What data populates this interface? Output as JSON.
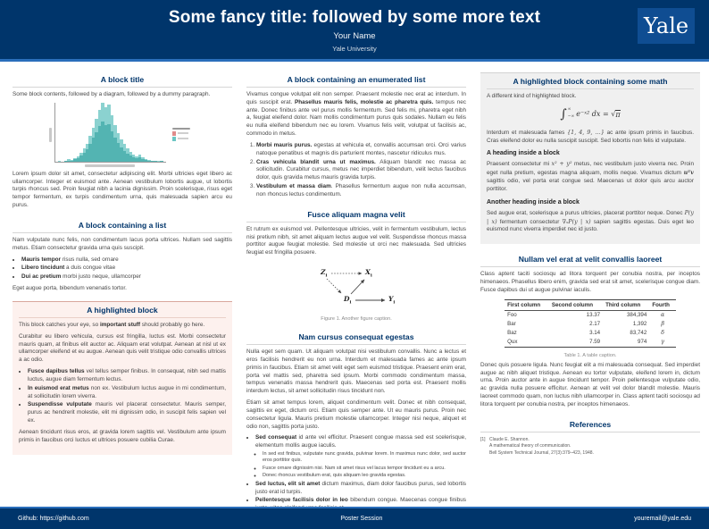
{
  "header": {
    "title": "Some fancy title: followed by some more text",
    "author": "Your Name",
    "institution": "Yale University",
    "logo_text": "Yale"
  },
  "footer": {
    "left": "Github: https://github.com",
    "center": "Poster Session",
    "right": "youremail@yale.edu"
  },
  "colors": {
    "yale_blue": "#00356B",
    "accent_blue": "#2a6ebb",
    "heading": "#00356B",
    "highlight_pink_bg": "#fdf1ee",
    "highlight_gray_bg": "#f0f0f0",
    "hist_light": "#8bd2d0",
    "hist_dark": "#53b4b2",
    "legend_swatch_1": "#e08b8b",
    "legend_swatch_2": "#6cc6c4"
  },
  "chart_data": {
    "type": "bar",
    "title": "",
    "xlabel": "",
    "ylabel": "",
    "legend_position": "right",
    "series": [
      {
        "name": "histogram-light",
        "color": "#8bd2d0",
        "values": [
          1,
          0,
          2,
          4,
          3,
          6,
          9,
          15,
          22,
          30,
          44,
          58,
          72,
          88,
          100,
          92,
          96,
          78,
          62,
          48,
          38,
          30,
          22,
          16,
          12,
          9,
          12,
          8,
          5,
          3,
          2,
          1,
          1,
          2
        ]
      },
      {
        "name": "histogram-dark",
        "color": "#53b4b2",
        "values": [
          0,
          0,
          1,
          2,
          2,
          4,
          6,
          10,
          15,
          21,
          30,
          40,
          50,
          60,
          68,
          62,
          64,
          52,
          41,
          31,
          24,
          18,
          14,
          10,
          8,
          6,
          8,
          5,
          3,
          2,
          1,
          1,
          0,
          1
        ]
      }
    ]
  },
  "dag": {
    "nodes": [
      {
        "main": "Z",
        "sub": "i"
      },
      {
        "main": "X",
        "sub": "i"
      },
      {
        "main": "D",
        "sub": "i"
      },
      {
        "main": "Y",
        "sub": "i"
      }
    ]
  },
  "col1": {
    "block1": {
      "title": "A block title",
      "p1": "Some block contents, followed by a diagram, followed by a dummy paragraph.",
      "p2": "Lorem ipsum dolor sit amet, consectetur adipiscing elit. Morbi ultricies eget libero ac ullamcorper. Integer et euismod ante. Aenean vestibulum lobortis augue, ut lobortis turpis rhoncus sed. Proin feugiat nibh a lacinia dignissim. Proin scelerisque, risus eget tempor fermentum, ex turpis condimentum urna, quis malesuada sapien arcu eu purus."
    },
    "block2": {
      "title": "A block containing a list",
      "p1": "Nam vulputate nunc felis, non condimentum lacus porta ultrices. Nullam sed sagittis metus. Etiam consectetur gravida urna quis suscipit.",
      "items": [
        {
          "lead": "Mauris tempor",
          "rest": " risus nulla, sed ornare"
        },
        {
          "lead": "Libero tincidunt",
          "rest": " a duis congue vitae"
        },
        {
          "lead": "Dui ac pretium",
          "rest": " morbi justo neque, ullamcorper"
        }
      ],
      "p2": "Eget augue porta, bibendum venenatis tortor."
    },
    "block3": {
      "title": "A highlighted block",
      "p1a": "This block catches your eye, so ",
      "p1b": "important stuff",
      "p1c": " should probably go here.",
      "p2": "Curabitur eu libero vehicula, cursus est fringilla, luctus est. Morbi consectetur mauris quam, at finibus elit auctor ac. Aliquam erat volutpat. Aenean at nisl ut ex ullamcorper eleifend et eu augue. Aenean quis velit tristique odio convallis ultrices a ac odio.",
      "items": [
        {
          "lead": "Fusce dapibus tellus",
          "rest": " vel tellus semper finibus. In consequat, nibh sed mattis luctus, augue diam fermentum lectus."
        },
        {
          "lead": "In euismod erat metus",
          "rest": " non ex. Vestibulum luctus augue in mi condimentum, at sollicitudin lorem viverra."
        },
        {
          "lead": "Suspendisse vulputate",
          "rest": " mauris vel placerat consectetur. Mauris semper, purus ac hendrerit molestie, elit mi dignissim odio, in suscipit felis sapien vel ex."
        }
      ],
      "p3": "Aenean tincidunt risus eros, at gravida lorem sagittis vel. Vestibulum ante ipsum primis in faucibus orci luctus et ultrices posuere cubilia Curae."
    }
  },
  "col2": {
    "block1": {
      "title": "A block containing an enumerated list",
      "p1a": "Vivamus congue volutpat elit non semper. Praesent molestie nec erat ac interdum. In quis suscipit erat. ",
      "p1b": "Phasellus mauris felis, molestie ac pharetra quis.",
      "p1c": " tempus nec ante. Donec finibus ante vel purus mollis fermentum. Sed felis mi, pharetra eget nibh a, feugiat eleifend dolor. Nam mollis condimentum purus quis sodales. Nullam eu felis eu nulla eleifend bibendum nec eu lorem. Vivamus felis velit, volutpat ut facilisis ac, commodo in metus.",
      "items": [
        {
          "lead": "Morbi mauris purus.",
          "rest": " egestas at vehicula et, convallis accumsan orci. Orci varius natoque penatibus et magnis dis parturient montes, nascetur ridiculus mus."
        },
        {
          "lead": "Cras vehicula blandit urna ut maximus.",
          "rest": " Aliquam blandit nec massa ac sollicitudin. Curabitur cursus, metus nec imperdiet bibendum, velit lectus faucibus dolor, quis gravida metus mauris gravida turpis."
        },
        {
          "lead": "Vestibulum et massa diam",
          "rest": ". Phasellus fermentum augue non nulla accumsan, non rhoncus lectus condimentum."
        }
      ]
    },
    "block2": {
      "title": "Fusce aliquam magna velit",
      "p1": "Et rutrum ex euismod vel. Pellentesque ultricies, velit in fermentum vestibulum, lectus nisi pretium nibh, sit amet aliquam lectus augue vel velit. Suspendisse rhoncus massa porttitor augue feugiat molestie. Sed molestie ut orci nec malesuada. Sed ultricies feugiat est fringilla posuere.",
      "caption": "Figure 1. Another figure caption."
    },
    "block3": {
      "title": "Nam cursus consequat egestas",
      "p1": "Nulla eget sem quam. Ut aliquam volutpat nisi vestibulum convallis. Nunc a lectus et eros facilisis hendrerit eu non urna. Interdum et malesuada fames ac ante ipsum primis in faucibus. Etiam sit amet velit eget sem euismod tristique. Praesent enim erat, porta vel mattis sed, pharetra sed ipsum. Morbi commodo condimentum massa, tempus venenatis massa hendrerit quis. Maecenas sed porta est. Praesent mollis interdum lectus, sit amet sollicitudin risus tincidunt non.",
      "p2": "Etiam sit amet tempus lorem, aliquet condimentum velit. Donec et nibh consequat, sagittis ex eget, dictum orci. Etiam quis semper ante. Ut eu mauris purus. Proin nec consectetur ligula. Mauris pretium molestie ullamcorper. Integer nisi neque, aliquet et odio non, sagittis porta justo.",
      "item1": {
        "lead": "Sed consequat",
        "rest": " id ante vel efficitur. Praesent congue massa sed est scelerisque, elementum mollis augue iaculis."
      },
      "sub1": "In sed est finibus, vulputate nunc gravida, pulvinar lorem. In maximus nunc dolor, sed auctor eros porttitor quis.",
      "sub2": "Fusce ornare dignissim nisi. Nam sit amet risus vel lacus tempor tincidunt eu a arcu.",
      "sub3": "Donec rhoncus vestibulum erat, quis aliquam leo gravida egestas.",
      "item2": {
        "lead": "Sed luctus, elit sit amet",
        "rest": " dictum maximus, diam dolor faucibus purus, sed lobortis justo erat id turpis."
      },
      "item3": {
        "lead": "Pellentesque facilisis dolor in leo",
        "rest": " bibendum congue. Maecenas congue finibus justo, vitae eleifend urna facilisis at."
      }
    }
  },
  "col3": {
    "block1": {
      "title": "A highlighted block containing some math",
      "p1": "A different kind of highlighted block.",
      "equation": {
        "integral": "∫",
        "upper": "∞",
        "lower": "−∞",
        "body": "e⁻ˣ²",
        "middle": " dx = ",
        "sqrt": "√",
        "radicand": "π"
      },
      "p2a": "Interdum et malesuada fames ",
      "p2b": "{1, 4, 9, …}",
      "p2c": " ac ante ipsum primis in faucibus. Cras eleifend dolor eu nulla suscipit suscipit. Sed lobortis non felis id vulputate.",
      "h1": "A heading inside a block",
      "p3a": "Praesent consectetur mi ",
      "p3b": "x² + y²",
      "p3c": " metus, nec vestibulum justo viverra nec. Proin eget nulla pretium, egestas magna aliquam, mollis neque. Vivamus dictum ",
      "p3d": "uᵀv",
      "p3e": " sagittis odio, vel porta erat congue sed. Maecenas ut dolor quis arcu auctor porttitor.",
      "h2": "Another heading inside a block",
      "p4a": "Sed augue erat, scelerisque a purus ultricies, placerat porttitor neque. Donec ",
      "p4b": "P(y | x)",
      "p4c": " fermentum consectetur ",
      "p4d": "∇ₓP(y | x)",
      "p4e": " sapien sagittis egestas. Duis eget leo euismod nunc viverra imperdiet nec id justo."
    },
    "block2": {
      "title": "Nullam vel erat at velit convallis laoreet",
      "p1": "Class aptent taciti sociosqu ad litora torquent per conubia nostra, per inceptos himenaeos. Phasellus libero enim, gravida sed erat sit amet, scelerisque congue diam. Fusce dapibus dui ut augue pulvinar iaculis.",
      "table": {
        "headers": [
          "First column",
          "Second column",
          "Third column",
          "Fourth"
        ],
        "rows": [
          [
            "Foo",
            "13.37",
            "384,394",
            "α"
          ],
          [
            "Bar",
            "2.17",
            "1,392",
            "β"
          ],
          [
            "Baz",
            "3.14",
            "83,742",
            "δ"
          ],
          [
            "Qux",
            "7.59",
            "974",
            "γ"
          ]
        ],
        "caption": "Table 1. A table caption."
      },
      "p2": "Donec quis posuere ligula. Nunc feugiat elit a mi malesuada consequat. Sed imperdiet augue ac nibh aliquet tristique. Aenean eu tortor vulputate, eleifend lorem in, dictum urna. Proin auctor ante in augue tincidunt tempor. Proin pellentesque vulputate odio, ac gravida nulla posuere efficitur. Aenean at velit vel dolor blandit molestie. Mauris laoreet commodo quam, non luctus nibh ullamcorper in. Class aptent taciti sociosqu ad litora torquent per conubia nostra, per inceptos himenaeos."
    },
    "block3": {
      "title": "References",
      "ref1": {
        "number": "[1]",
        "line1": "Claude E. Shannon.",
        "line2": "A mathematical theory of communication.",
        "line3": "Bell System Technical Journal, 27(3):379–423, 1948."
      }
    }
  }
}
